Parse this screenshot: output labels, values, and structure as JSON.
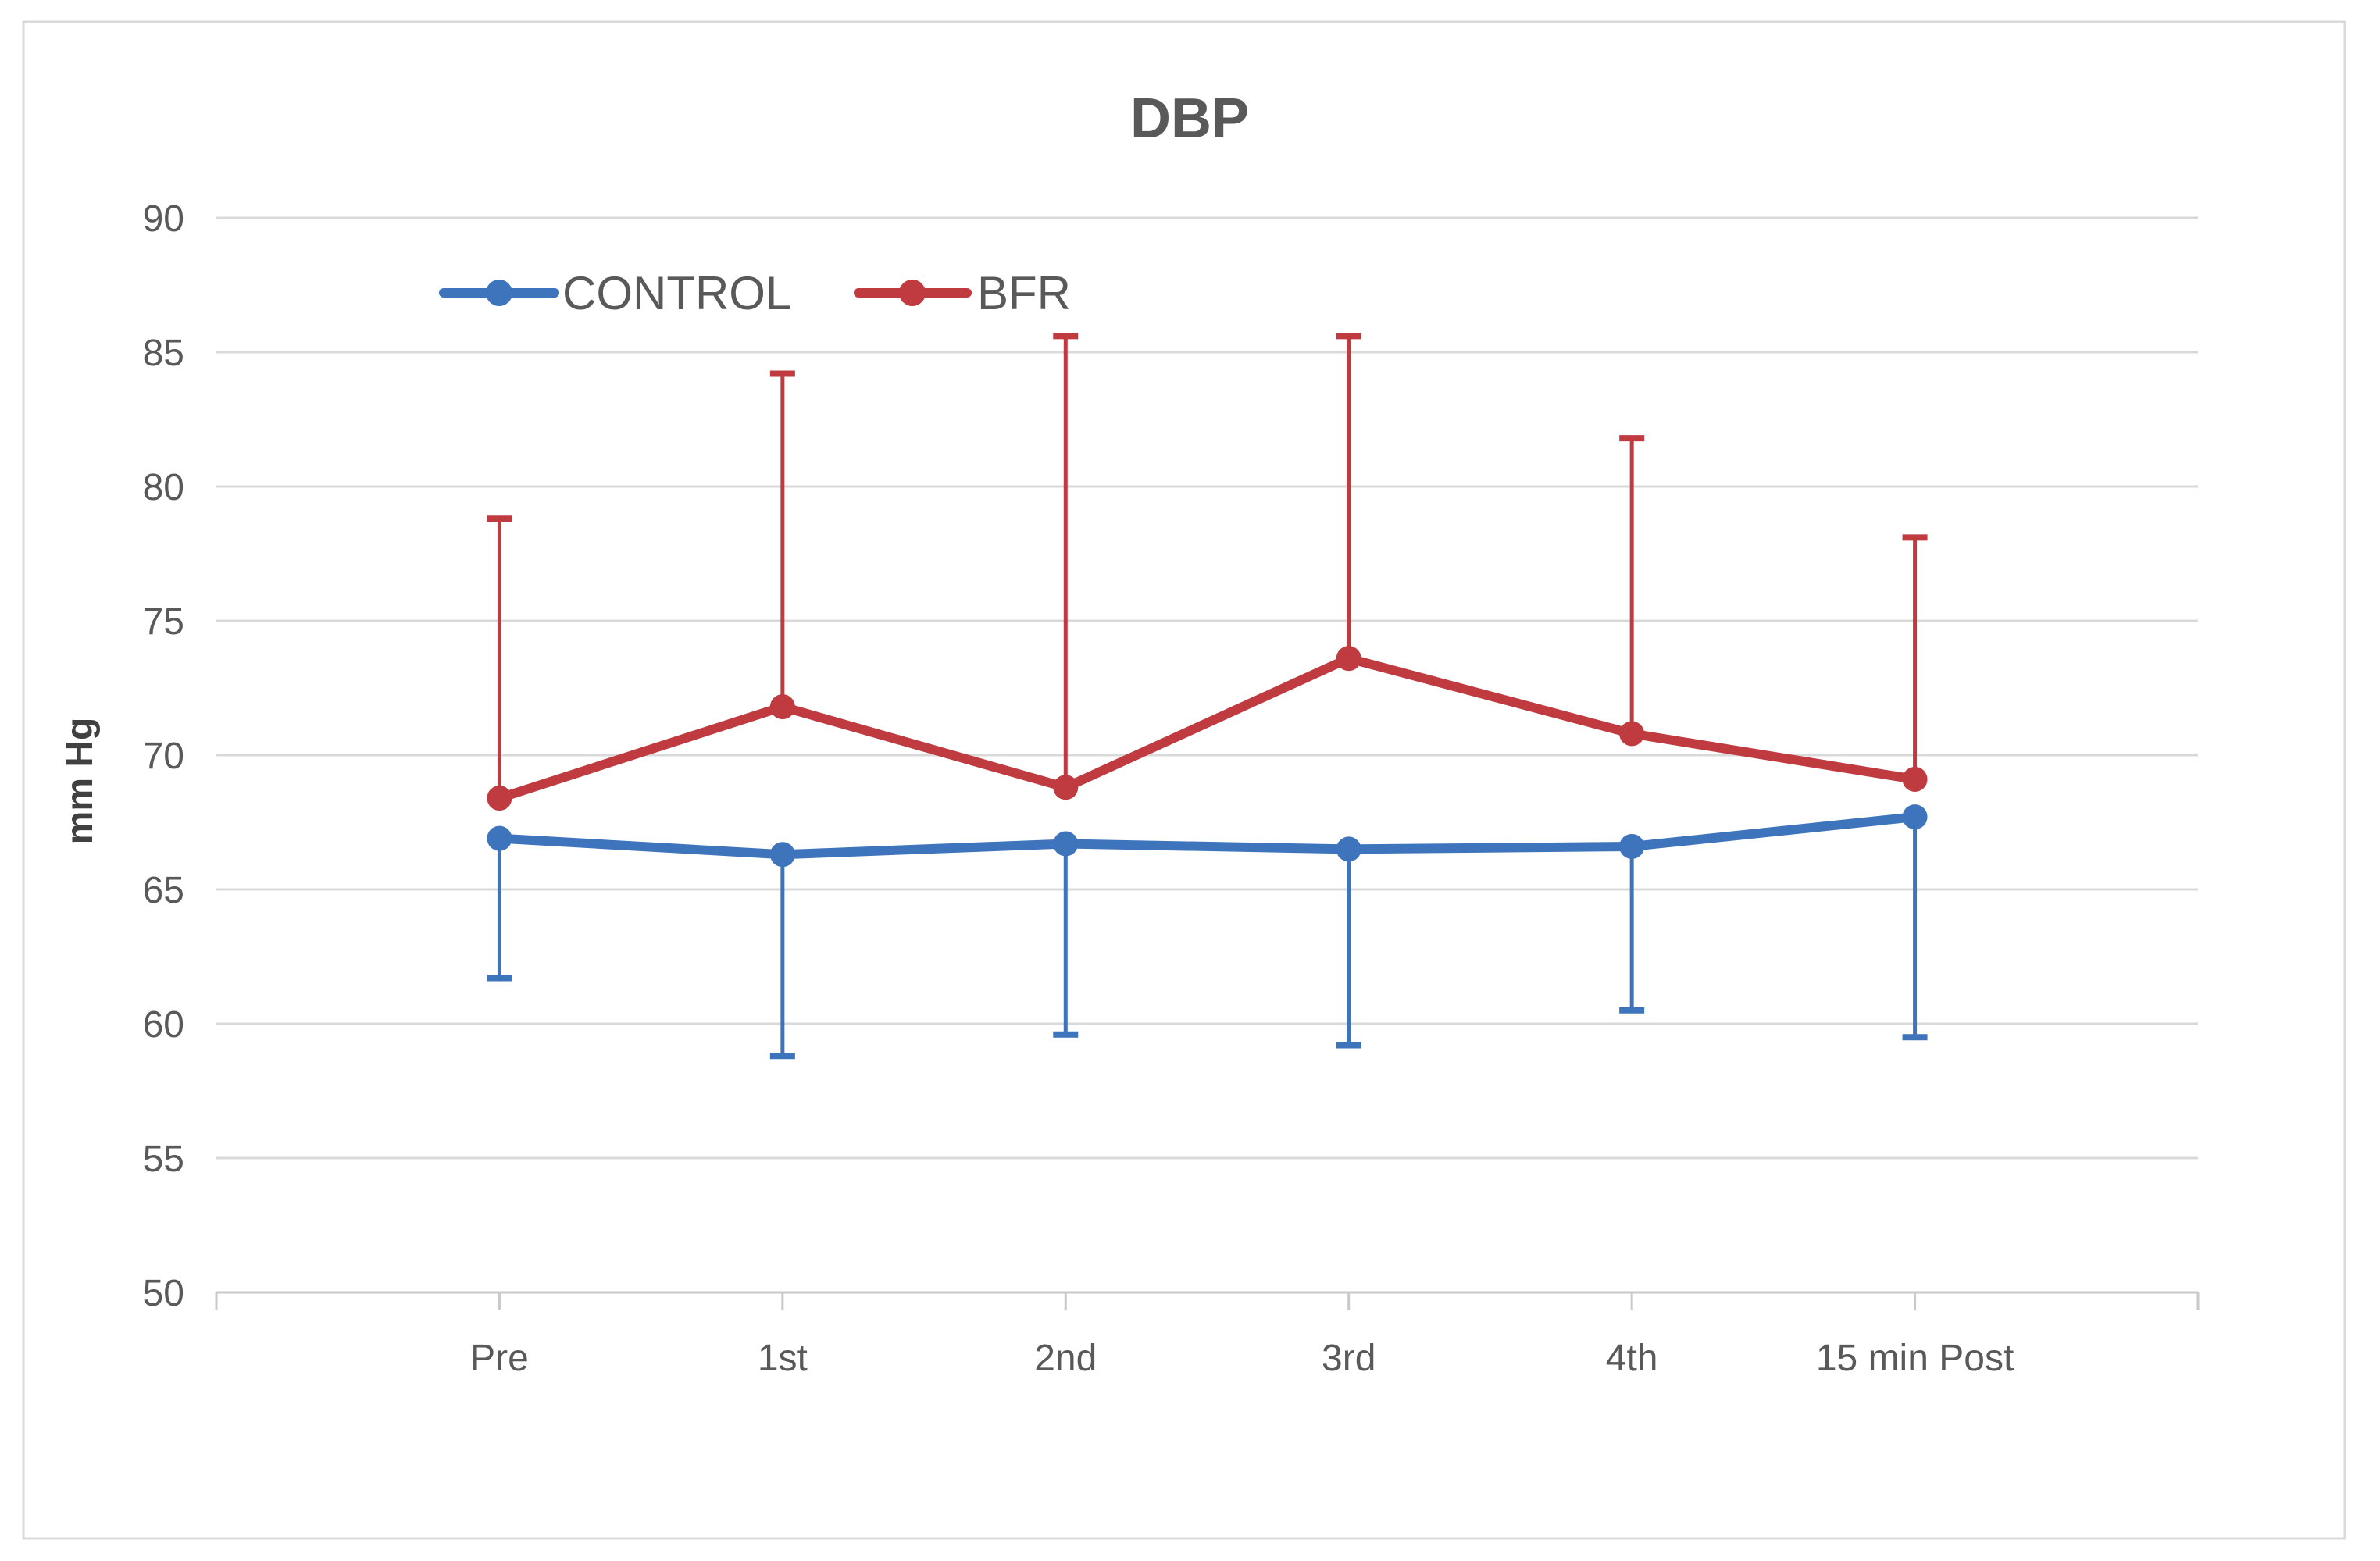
{
  "chart_data": {
    "type": "line",
    "title": "DBP",
    "xlabel": "",
    "ylabel": "mm Hg",
    "ylim": [
      50,
      90
    ],
    "ytick_step": 5,
    "yticks": [
      50,
      55,
      60,
      65,
      70,
      75,
      80,
      85,
      90
    ],
    "grid": "horizontal",
    "legend_position": "top-left-inside",
    "categories": [
      "Pre",
      "1st",
      "2nd",
      "3rd",
      "4th",
      "15 min Post"
    ],
    "series": [
      {
        "name": "CONTROL",
        "color": "#3E74BB",
        "marker": "circle",
        "values": [
          66.9,
          66.3,
          66.7,
          66.5,
          66.6,
          67.7
        ],
        "error_minus": [
          5.2,
          7.5,
          7.1,
          7.3,
          6.1,
          8.2
        ],
        "error_direction": "down",
        "error_bottoms": [
          61.7,
          58.8,
          59.6,
          59.2,
          60.5,
          59.5
        ]
      },
      {
        "name": "BFR",
        "color": "#BF3B40",
        "marker": "circle",
        "values": [
          68.4,
          71.8,
          68.8,
          73.6,
          70.8,
          69.1
        ],
        "error_plus": [
          10.4,
          12.4,
          16.8,
          12.0,
          11.0,
          9.0
        ],
        "error_direction": "up",
        "error_tops": [
          78.8,
          84.2,
          85.6,
          85.6,
          81.8,
          78.1
        ]
      }
    ],
    "colors": {
      "control_series": "#3E74BB",
      "bfr_series": "#BF3B40",
      "gridline": "#D9D9D9",
      "axis_line": "#C9C9C9",
      "tick_label": "#595959",
      "title_text": "#595959",
      "axis_title_text": "#404040",
      "chart_border": "#D9D9D9",
      "background": "#FFFFFF"
    },
    "legend": {
      "items": [
        {
          "label": "CONTROL",
          "color": "#3E74BB"
        },
        {
          "label": "BFR",
          "color": "#BF3B40"
        }
      ]
    }
  }
}
